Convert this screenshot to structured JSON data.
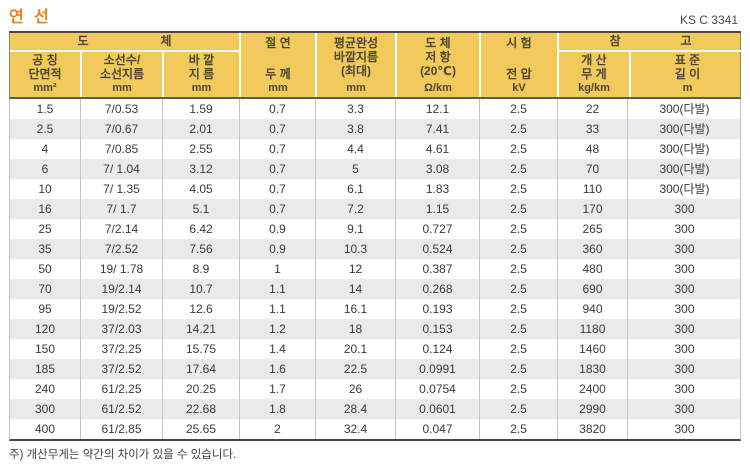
{
  "page": {
    "title": "연 선",
    "standard": "KS C 3341",
    "note": "주) 개산무게는 약간의 차이가 있을 수 있습니다."
  },
  "colors": {
    "title": "#EE7F1D",
    "header-bg": "#F2C95B",
    "header-text": "#4B4637",
    "row-alt": "#EAEAEA",
    "data-text": "#3A3A3A",
    "border-dark": "#4A473E",
    "border-light": "#C6C6C6"
  },
  "table": {
    "groups": {
      "conductor": "도　　　　　　체",
      "reference": "참　　　　　고"
    },
    "header": {
      "columns": [
        {
          "l1": "공 칭",
          "l2": "단면적",
          "unit": "mm²"
        },
        {
          "l1": "소선수/",
          "l2": "소선지름",
          "unit": "mm"
        },
        {
          "l1": "바 깥",
          "l2": "지 름",
          "unit": "mm"
        },
        {
          "l1": "절 연",
          "l2": "두 께",
          "unit": "mm"
        },
        {
          "l1": "평균완성",
          "l2": "바깥지름",
          "l3": "(최대)",
          "unit": "mm"
        },
        {
          "l1": "도 체",
          "l2": "저 항",
          "l3": "(20℃)",
          "unit": "Ω/km"
        },
        {
          "l1": "시 험",
          "l2": "전 압",
          "unit": "kV"
        },
        {
          "l1": "개 산",
          "l2": "무 게",
          "unit": "kg/km"
        },
        {
          "l1": "표 준",
          "l2": "길 이",
          "unit": "m"
        }
      ]
    },
    "rows": [
      [
        "1.5",
        "7/0.53",
        "1.59",
        "0.7",
        "3.3",
        "12.1",
        "2.5",
        "22",
        "300(다발)"
      ],
      [
        "2.5",
        "7/0.67",
        "2.01",
        "0.7",
        "3.8",
        "7.41",
        "2.5",
        "33",
        "300(다발)"
      ],
      [
        "4",
        "7/0.85",
        "2.55",
        "0.7",
        "4.4",
        "4.61",
        "2.5",
        "48",
        "300(다발)"
      ],
      [
        "6",
        "7/ 1.04",
        "3.12",
        "0.7",
        "5",
        "3.08",
        "2.5",
        "70",
        "300(다발)"
      ],
      [
        "10",
        "7/ 1.35",
        "4.05",
        "0.7",
        "6.1",
        "1.83",
        "2.5",
        "110",
        "300(다발)"
      ],
      [
        "16",
        "7/ 1.7",
        "5.1",
        "0.7",
        "7.2",
        "1.15",
        "2.5",
        "170",
        "300"
      ],
      [
        "25",
        "7/2.14",
        "6.42",
        "0.9",
        "9.1",
        "0.727",
        "2.5",
        "265",
        "300"
      ],
      [
        "35",
        "7/2.52",
        "7.56",
        "0.9",
        "10.3",
        "0.524",
        "2.5",
        "360",
        "300"
      ],
      [
        "50",
        "19/ 1.78",
        "8.9",
        "1",
        "12",
        "0.387",
        "2.5",
        "480",
        "300"
      ],
      [
        "70",
        "19/2.14",
        "10.7",
        "1.1",
        "14",
        "0.268",
        "2.5",
        "690",
        "300"
      ],
      [
        "95",
        "19/2.52",
        "12.6",
        "1.1",
        "16.1",
        "0.193",
        "2.5",
        "940",
        "300"
      ],
      [
        "120",
        "37/2.03",
        "14.21",
        "1.2",
        "18",
        "0.153",
        "2.5",
        "1180",
        "300"
      ],
      [
        "150",
        "37/2.25",
        "15.75",
        "1.4",
        "20.1",
        "0.124",
        "2.5",
        "1460",
        "300"
      ],
      [
        "185",
        "37/2.52",
        "17.64",
        "1.6",
        "22.5",
        "0.0991",
        "2.5",
        "1830",
        "300"
      ],
      [
        "240",
        "61/2.25",
        "20.25",
        "1.7",
        "26",
        "0.0754",
        "2.5",
        "2400",
        "300"
      ],
      [
        "300",
        "61/2.52",
        "22.68",
        "1.8",
        "28.4",
        "0.0601",
        "2.5",
        "2990",
        "300"
      ],
      [
        "400",
        "61/2.85",
        "25.65",
        "2",
        "32.4",
        "0.047",
        "2.5",
        "3820",
        "300"
      ]
    ]
  }
}
